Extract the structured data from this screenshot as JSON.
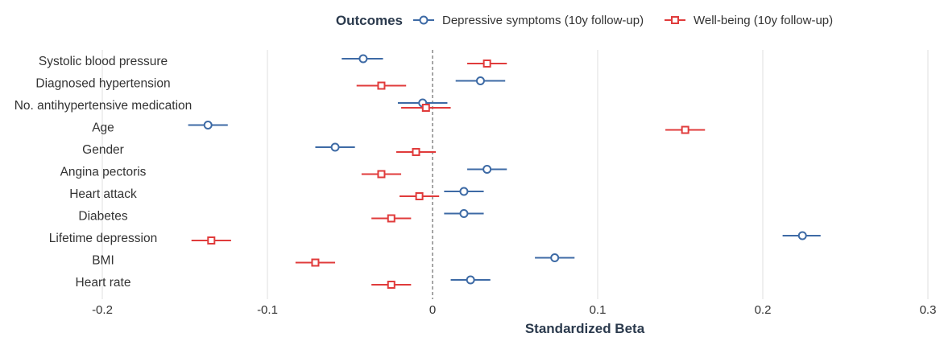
{
  "chart_data": {
    "type": "scatter",
    "legend_title": "Outcomes",
    "xlabel": "Standardized Beta",
    "xlim": [
      -0.2,
      0.3
    ],
    "xticks": [
      -0.2,
      -0.1,
      0,
      0.1,
      0.2,
      0.3
    ],
    "xtick_labels": [
      "-0.2",
      "-0.1",
      "0",
      "0.1",
      "0.2",
      "0.3"
    ],
    "reference_line": 0,
    "categories": [
      "Systolic blood pressure",
      "Diagnosed hypertension",
      "No. antihypertensive medication",
      "Age",
      "Gender",
      "Angina pectoris",
      "Heart attack",
      "Diabetes",
      "Lifetime depression",
      "BMI",
      "Heart rate"
    ],
    "series": [
      {
        "name": "Depressive symptoms (10y follow-up)",
        "color": "#3d6aa5",
        "marker": "circle",
        "estimates": [
          -0.042,
          0.029,
          -0.006,
          -0.136,
          -0.059,
          0.033,
          0.019,
          0.019,
          0.224,
          0.074,
          0.023
        ],
        "ci_low": [
          -0.055,
          0.014,
          -0.021,
          -0.148,
          -0.071,
          0.021,
          0.007,
          0.007,
          0.212,
          0.062,
          0.011
        ],
        "ci_high": [
          -0.03,
          0.044,
          0.009,
          -0.124,
          -0.047,
          0.045,
          0.031,
          0.031,
          0.235,
          0.086,
          0.035
        ]
      },
      {
        "name": "Well-being (10y follow-up)",
        "color": "#e03b3b",
        "marker": "square",
        "estimates": [
          0.033,
          -0.031,
          -0.004,
          0.153,
          -0.01,
          -0.031,
          -0.008,
          -0.025,
          -0.134,
          -0.071,
          -0.025
        ],
        "ci_low": [
          0.021,
          -0.046,
          -0.019,
          0.141,
          -0.022,
          -0.043,
          -0.02,
          -0.037,
          -0.146,
          -0.083,
          -0.037
        ],
        "ci_high": [
          0.045,
          -0.016,
          0.011,
          0.165,
          0.002,
          -0.019,
          0.004,
          -0.013,
          -0.122,
          -0.059,
          -0.013
        ]
      }
    ]
  }
}
